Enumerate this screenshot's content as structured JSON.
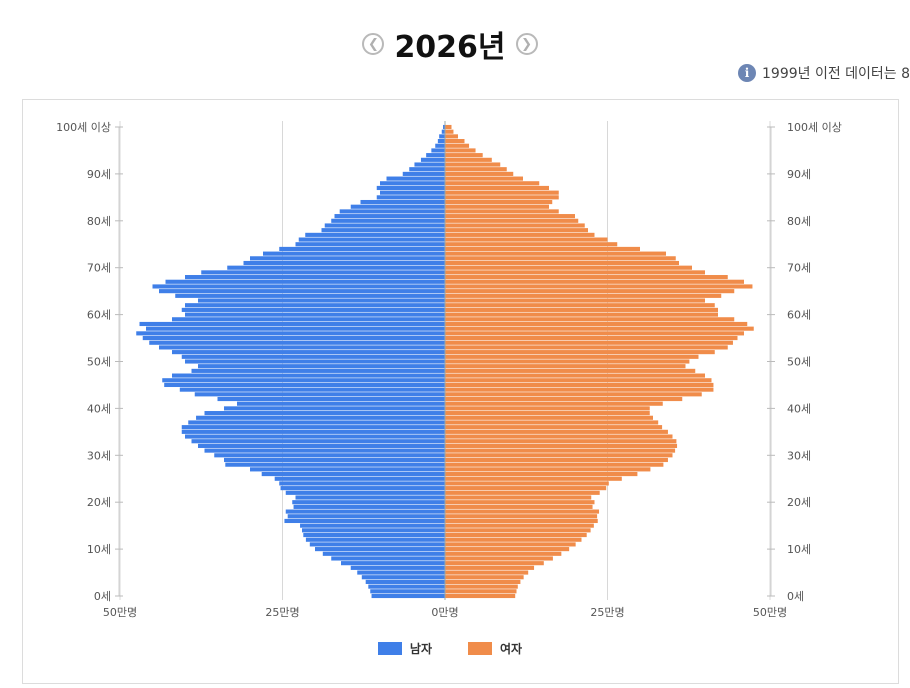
{
  "header": {
    "year_title": "2026년",
    "prev_icon": "chevron-left-icon",
    "next_icon": "chevron-right-icon"
  },
  "notice": {
    "icon": "info-icon",
    "text": "1999년 이전 데이터는 8"
  },
  "chart_data": {
    "type": "bar",
    "orientation": "horizontal-population-pyramid",
    "categories": [
      "0세",
      "1세",
      "2세",
      "3세",
      "4세",
      "5세",
      "6세",
      "7세",
      "8세",
      "9세",
      "10세",
      "11세",
      "12세",
      "13세",
      "14세",
      "15세",
      "16세",
      "17세",
      "18세",
      "19세",
      "20세",
      "21세",
      "22세",
      "23세",
      "24세",
      "25세",
      "26세",
      "27세",
      "28세",
      "29세",
      "30세",
      "31세",
      "32세",
      "33세",
      "34세",
      "35세",
      "36세",
      "37세",
      "38세",
      "39세",
      "40세",
      "41세",
      "42세",
      "43세",
      "44세",
      "45세",
      "46세",
      "47세",
      "48세",
      "49세",
      "50세",
      "51세",
      "52세",
      "53세",
      "54세",
      "55세",
      "56세",
      "57세",
      "58세",
      "59세",
      "60세",
      "61세",
      "62세",
      "63세",
      "64세",
      "65세",
      "66세",
      "67세",
      "68세",
      "69세",
      "70세",
      "71세",
      "72세",
      "73세",
      "74세",
      "75세",
      "76세",
      "77세",
      "78세",
      "79세",
      "80세",
      "81세",
      "82세",
      "83세",
      "84세",
      "85세",
      "86세",
      "87세",
      "88세",
      "89세",
      "90세",
      "91세",
      "92세",
      "93세",
      "94세",
      "95세",
      "96세",
      "97세",
      "98세",
      "99세",
      "100세 이상"
    ],
    "series": [
      {
        "name": "남자",
        "color": "#3f7fe8",
        "side": "left",
        "values": [
          11.3,
          11.5,
          11.8,
          12.2,
          12.8,
          13.5,
          14.5,
          16.0,
          17.5,
          18.8,
          20.0,
          20.8,
          21.4,
          21.8,
          22.0,
          22.3,
          24.7,
          24.2,
          24.5,
          23.3,
          23.5,
          23.0,
          24.5,
          25.3,
          25.5,
          26.2,
          28.2,
          30.0,
          33.8,
          34.0,
          35.5,
          37.0,
          38.0,
          39.0,
          40.0,
          40.5,
          40.5,
          39.5,
          38.3,
          37.0,
          34.0,
          32.0,
          35.0,
          38.5,
          40.8,
          43.2,
          43.5,
          42.0,
          39.0,
          38.0,
          40.0,
          40.5,
          42.0,
          44.0,
          45.5,
          46.5,
          47.5,
          46.0,
          47.0,
          42.0,
          40.0,
          40.5,
          40.0,
          38.0,
          41.5,
          44.0,
          45.0,
          43.0,
          40.0,
          37.5,
          33.5,
          31.0,
          30.0,
          28.0,
          25.5,
          23.0,
          22.5,
          21.5,
          19.0,
          18.5,
          17.5,
          17.0,
          16.2,
          14.5,
          13.0,
          10.5,
          10.0,
          10.5,
          10.0,
          9.0,
          6.5,
          5.5,
          4.7,
          3.7,
          2.9,
          2.1,
          1.5,
          1.1,
          0.9,
          0.5,
          0.3
        ],
        "values_unit": "만명"
      },
      {
        "name": "여자",
        "color": "#f08c4a",
        "side": "right",
        "values": [
          10.8,
          11.0,
          11.2,
          11.6,
          12.1,
          12.8,
          13.7,
          15.2,
          16.6,
          17.9,
          19.1,
          20.1,
          21.0,
          21.8,
          22.4,
          22.9,
          23.5,
          23.4,
          23.7,
          22.7,
          23.0,
          22.5,
          23.8,
          24.8,
          25.2,
          27.2,
          29.6,
          31.6,
          33.6,
          34.3,
          35.0,
          35.4,
          35.7,
          35.6,
          35.0,
          34.3,
          33.4,
          32.8,
          32.0,
          31.5,
          31.5,
          33.5,
          36.5,
          39.5,
          41.3,
          41.3,
          41.0,
          40.0,
          38.5,
          37.0,
          37.6,
          39.0,
          41.5,
          43.5,
          44.3,
          45.0,
          46.0,
          47.5,
          46.5,
          44.5,
          42.0,
          42.0,
          41.5,
          40.0,
          42.5,
          44.5,
          47.3,
          46.0,
          43.5,
          40.0,
          38.0,
          36.0,
          35.5,
          34.0,
          30.0,
          26.5,
          25.0,
          23.0,
          22.0,
          21.5,
          20.5,
          20.0,
          17.5,
          16.0,
          16.5,
          17.5,
          17.5,
          16.0,
          14.5,
          12.0,
          10.5,
          9.5,
          8.5,
          7.2,
          5.8,
          4.7,
          3.7,
          3.0,
          2.0,
          1.3,
          1.0
        ],
        "values_unit": "만명"
      }
    ],
    "x_ticks": [
      "50만명",
      "25만명",
      "0만명",
      "25만명",
      "50만명"
    ],
    "xlim": [
      -50,
      50
    ],
    "y_ticks": [
      "100세 이상",
      "90세",
      "80세",
      "70세",
      "60세",
      "50세",
      "40세",
      "30세",
      "20세",
      "10세",
      "0세"
    ],
    "legend": [
      "남자",
      "여자"
    ],
    "legend_position": "bottom-center",
    "grid": true
  }
}
